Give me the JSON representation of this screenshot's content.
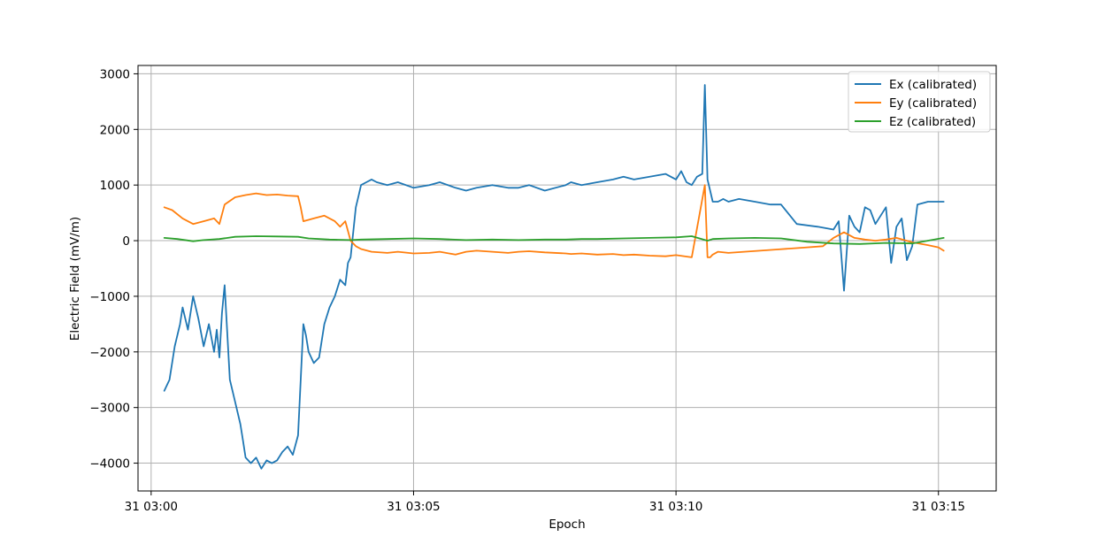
{
  "chart_data": {
    "type": "line",
    "title": "",
    "xlabel": "Epoch",
    "ylabel": "Electric Field (mV/m)",
    "x_unit": "minutes after 03:00",
    "xlim": [
      -0.25,
      16.1
    ],
    "ylim": [
      -4500,
      3150
    ],
    "grid": true,
    "legend_position": "upper-right",
    "x_ticks": [
      {
        "value": 0,
        "label": "31 03:00"
      },
      {
        "value": 5,
        "label": "31 03:05"
      },
      {
        "value": 10,
        "label": "31 03:10"
      },
      {
        "value": 15,
        "label": "31 03:15"
      }
    ],
    "y_ticks": [
      {
        "value": -4000,
        "label": "−4000"
      },
      {
        "value": -3000,
        "label": "−3000"
      },
      {
        "value": -2000,
        "label": "−2000"
      },
      {
        "value": -1000,
        "label": "−1000"
      },
      {
        "value": 0,
        "label": "0"
      },
      {
        "value": 1000,
        "label": "1000"
      },
      {
        "value": 2000,
        "label": "2000"
      },
      {
        "value": 3000,
        "label": "3000"
      }
    ],
    "series": [
      {
        "name": "Ex (calibrated)",
        "color": "#1f77b4",
        "x": [
          0.25,
          0.35,
          0.45,
          0.55,
          0.6,
          0.7,
          0.8,
          0.9,
          1.0,
          1.1,
          1.2,
          1.25,
          1.3,
          1.35,
          1.4,
          1.5,
          1.6,
          1.7,
          1.75,
          1.8,
          1.9,
          2.0,
          2.1,
          2.2,
          2.3,
          2.4,
          2.5,
          2.6,
          2.7,
          2.8,
          2.9,
          2.95,
          3.0,
          3.1,
          3.2,
          3.3,
          3.4,
          3.5,
          3.6,
          3.7,
          3.75,
          3.8,
          3.9,
          3.95,
          4.0,
          4.1,
          4.2,
          4.3,
          4.5,
          4.7,
          5.0,
          5.3,
          5.5,
          5.8,
          6.0,
          6.2,
          6.5,
          6.8,
          7.0,
          7.2,
          7.5,
          7.9,
          8.0,
          8.2,
          8.5,
          8.8,
          9.0,
          9.2,
          9.5,
          9.8,
          10.0,
          10.1,
          10.2,
          10.3,
          10.4,
          10.5,
          10.55,
          10.6,
          10.65,
          10.7,
          10.8,
          10.9,
          11.0,
          11.2,
          11.5,
          11.8,
          12.0,
          12.3,
          12.7,
          13.0,
          13.1,
          13.2,
          13.3,
          13.4,
          13.5,
          13.6,
          13.7,
          13.8,
          14.0,
          14.1,
          14.2,
          14.3,
          14.4,
          14.5,
          14.6,
          14.8,
          15.0,
          15.1
        ],
        "y": [
          -2700,
          -2500,
          -1900,
          -1500,
          -1200,
          -1600,
          -1000,
          -1400,
          -1900,
          -1500,
          -2000,
          -1600,
          -2100,
          -1300,
          -800,
          -2500,
          -2900,
          -3300,
          -3600,
          -3900,
          -4000,
          -3900,
          -4100,
          -3950,
          -4000,
          -3950,
          -3800,
          -3700,
          -3850,
          -3500,
          -1500,
          -1700,
          -2000,
          -2200,
          -2100,
          -1500,
          -1200,
          -1000,
          -700,
          -800,
          -400,
          -300,
          600,
          800,
          1000,
          1050,
          1100,
          1050,
          1000,
          1050,
          950,
          1000,
          1050,
          950,
          900,
          950,
          1000,
          950,
          950,
          1000,
          900,
          1000,
          1050,
          1000,
          1050,
          1100,
          1150,
          1100,
          1150,
          1200,
          1100,
          1250,
          1050,
          1000,
          1150,
          1200,
          2800,
          1100,
          900,
          700,
          700,
          750,
          700,
          750,
          700,
          650,
          650,
          300,
          250,
          200,
          350,
          -900,
          450,
          250,
          150,
          600,
          550,
          300,
          600,
          -400,
          250,
          400,
          -350,
          -100,
          650,
          700,
          700,
          700
        ]
      },
      {
        "name": "Ey (calibrated)",
        "color": "#ff7f0e",
        "x": [
          0.25,
          0.4,
          0.6,
          0.8,
          1.0,
          1.2,
          1.3,
          1.4,
          1.6,
          1.8,
          2.0,
          2.2,
          2.4,
          2.6,
          2.8,
          2.85,
          2.9,
          3.1,
          3.3,
          3.5,
          3.6,
          3.7,
          3.8,
          3.9,
          4.0,
          4.2,
          4.5,
          4.7,
          5.0,
          5.3,
          5.5,
          5.8,
          6.0,
          6.2,
          6.5,
          6.8,
          7.0,
          7.2,
          7.5,
          7.9,
          8.0,
          8.2,
          8.5,
          8.8,
          9.0,
          9.2,
          9.5,
          9.8,
          10.0,
          10.3,
          10.55,
          10.6,
          10.65,
          10.7,
          10.8,
          11.0,
          11.3,
          11.6,
          11.9,
          12.2,
          12.5,
          12.8,
          13.0,
          13.2,
          13.4,
          13.6,
          13.8,
          14.0,
          14.2,
          14.5,
          14.8,
          15.0,
          15.1
        ],
        "y": [
          600,
          550,
          400,
          300,
          350,
          400,
          300,
          650,
          780,
          820,
          850,
          820,
          830,
          810,
          800,
          600,
          350,
          400,
          450,
          350,
          250,
          350,
          0,
          -100,
          -150,
          -200,
          -220,
          -200,
          -230,
          -220,
          -200,
          -250,
          -200,
          -180,
          -200,
          -220,
          -200,
          -190,
          -210,
          -230,
          -240,
          -230,
          -250,
          -240,
          -260,
          -250,
          -270,
          -280,
          -260,
          -300,
          1000,
          -300,
          -300,
          -250,
          -200,
          -220,
          -200,
          -180,
          -160,
          -140,
          -120,
          -100,
          50,
          150,
          50,
          20,
          0,
          20,
          50,
          -30,
          -80,
          -120,
          -180
        ]
      },
      {
        "name": "Ez (calibrated)",
        "color": "#2ca02c",
        "x": [
          0.25,
          0.5,
          0.8,
          1.0,
          1.3,
          1.6,
          2.0,
          2.4,
          2.8,
          3.0,
          3.4,
          3.8,
          4.0,
          4.5,
          5.0,
          5.5,
          6.0,
          6.5,
          7.0,
          7.5,
          7.9,
          8.2,
          8.5,
          9.0,
          9.5,
          10.0,
          10.3,
          10.6,
          10.7,
          11.0,
          11.5,
          12.0,
          12.5,
          13.0,
          13.5,
          14.0,
          14.5,
          15.1
        ],
        "y": [
          50,
          30,
          -10,
          10,
          30,
          70,
          80,
          75,
          70,
          40,
          20,
          10,
          20,
          30,
          40,
          30,
          10,
          20,
          10,
          20,
          20,
          30,
          30,
          40,
          50,
          60,
          80,
          0,
          30,
          40,
          50,
          40,
          -20,
          -50,
          -60,
          -40,
          -50,
          50
        ]
      }
    ]
  }
}
